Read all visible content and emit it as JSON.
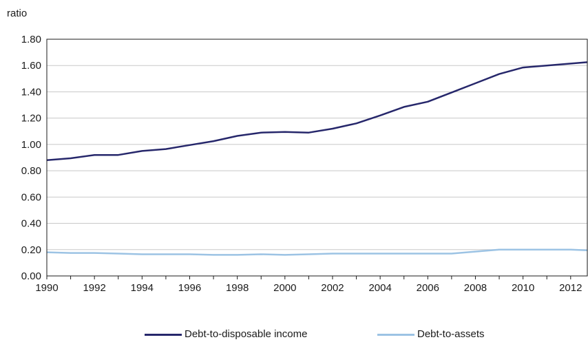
{
  "chart_data": {
    "type": "line",
    "ylabel": "ratio",
    "xlabel": "",
    "ylim": [
      0,
      1.8
    ],
    "xlim": [
      1990,
      2012.7
    ],
    "y_ticks": [
      "0.00",
      "0.20",
      "0.40",
      "0.60",
      "0.80",
      "1.00",
      "1.20",
      "1.40",
      "1.60",
      "1.80"
    ],
    "x_ticks": [
      "1990",
      "1992",
      "1994",
      "1996",
      "1998",
      "2000",
      "2002",
      "2004",
      "2006",
      "2008",
      "2010",
      "2012"
    ],
    "grid": true,
    "legend_position": "bottom",
    "x": [
      1990,
      1991,
      1992,
      1993,
      1994,
      1995,
      1996,
      1997,
      1998,
      1999,
      2000,
      2001,
      2002,
      2003,
      2004,
      2005,
      2006,
      2007,
      2008,
      2009,
      2010,
      2011,
      2012,
      2012.7
    ],
    "series": [
      {
        "name": "Debt-to-disposable income",
        "color": "#26276b",
        "values": [
          0.88,
          0.895,
          0.92,
          0.92,
          0.95,
          0.965,
          0.995,
          1.025,
          1.065,
          1.09,
          1.095,
          1.09,
          1.12,
          1.16,
          1.22,
          1.285,
          1.325,
          1.395,
          1.465,
          1.535,
          1.585,
          1.6,
          1.615,
          1.625
        ]
      },
      {
        "name": "Debt-to-assets",
        "color": "#9cc3e4",
        "values": [
          0.18,
          0.175,
          0.175,
          0.17,
          0.165,
          0.165,
          0.165,
          0.16,
          0.16,
          0.165,
          0.16,
          0.165,
          0.17,
          0.17,
          0.17,
          0.17,
          0.17,
          0.17,
          0.185,
          0.2,
          0.2,
          0.2,
          0.2,
          0.195
        ]
      }
    ]
  }
}
